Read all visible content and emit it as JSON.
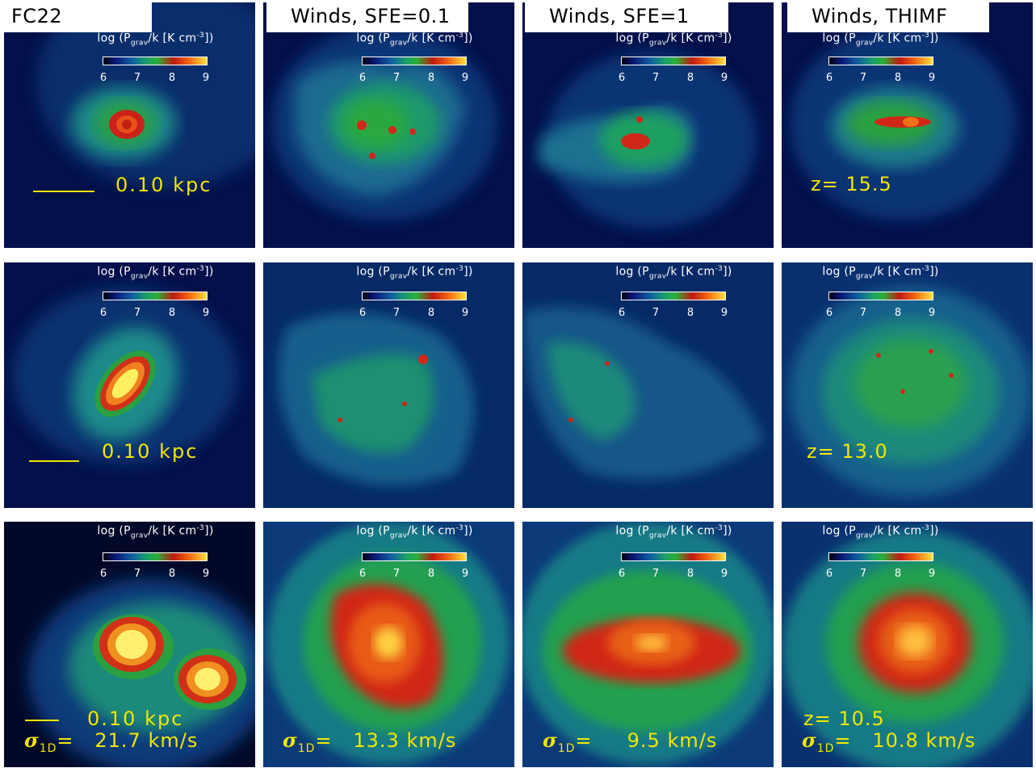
{
  "columns": [
    {
      "name": "FC22"
    },
    {
      "name": "Winds, SFE=0.1"
    },
    {
      "name": "Winds, SFE=1"
    },
    {
      "name": "Winds, THIMF"
    }
  ],
  "colorbar": {
    "title_prefix": "log (P",
    "title_sub": "grav",
    "title_mid": "/k [K cm",
    "title_sup": "-3",
    "title_suffix": "])",
    "ticks": [
      "6",
      "7",
      "8",
      "9"
    ]
  },
  "scale_label": "0.10 kpc",
  "redshifts": [
    "z=  15.5",
    "z=  13.0",
    "z=  10.5"
  ],
  "sigma": {
    "symbol": "σ",
    "sub": "1D",
    "eq": "=",
    "values": [
      "21.7 km/s",
      "13.3 km/s",
      "9.5 km/s",
      "10.8 km/s"
    ]
  },
  "colors": {
    "annotation": "#f2e600",
    "background": "#020c3a"
  }
}
